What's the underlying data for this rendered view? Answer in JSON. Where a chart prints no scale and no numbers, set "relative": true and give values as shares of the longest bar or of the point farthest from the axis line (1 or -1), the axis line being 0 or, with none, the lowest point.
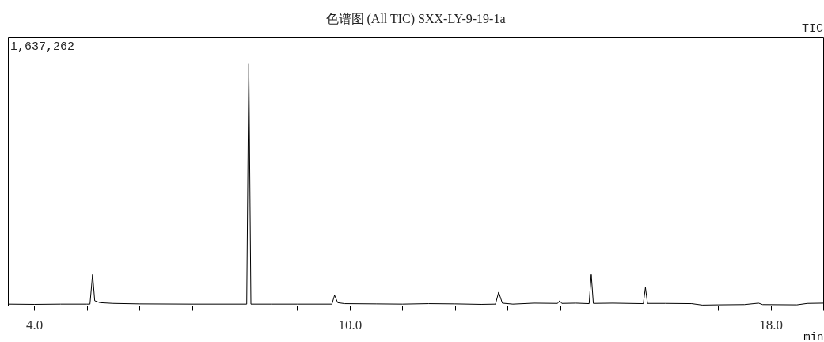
{
  "chart_data": {
    "type": "line",
    "title": "色谱图 (All TIC) SXX-LY-9-19-1a",
    "xlabel": "min",
    "annotations": [
      "1,637,262",
      "TIC"
    ],
    "relative": true,
    "grid": false,
    "marker": "none",
    "line_style": "solid",
    "xlim": [
      3.5,
      19.0
    ],
    "xticks": [
      {
        "value": 4,
        "label": "4.0"
      },
      {
        "value": 5,
        "label": null
      },
      {
        "value": 6,
        "label": null
      },
      {
        "value": 7,
        "label": null
      },
      {
        "value": 8,
        "label": null
      },
      {
        "value": 9,
        "label": null
      },
      {
        "value": 10,
        "label": "10.0"
      },
      {
        "value": 11,
        "label": null
      },
      {
        "value": 12,
        "label": null
      },
      {
        "value": 13,
        "label": null
      },
      {
        "value": 14,
        "label": null
      },
      {
        "value": 15,
        "label": null
      },
      {
        "value": 16,
        "label": null
      },
      {
        "value": 17,
        "label": null
      },
      {
        "value": 18,
        "label": "18.0"
      },
      {
        "value": 19,
        "label": null
      }
    ],
    "series": [
      {
        "color": "#000000",
        "x": [
          3.5,
          4.0,
          4.5,
          5.0,
          5.06,
          5.11,
          5.15,
          5.25,
          5.5,
          6.0,
          7.0,
          8.0,
          8.04,
          8.08,
          8.12,
          8.5,
          9.0,
          9.66,
          9.71,
          9.77,
          9.9,
          10.5,
          11.0,
          11.5,
          12.0,
          12.5,
          12.77,
          12.83,
          12.9,
          13.1,
          13.5,
          13.95,
          13.99,
          14.03,
          14.3,
          14.55,
          14.59,
          14.63,
          15.0,
          15.58,
          15.62,
          15.66,
          16.0,
          16.5,
          16.7,
          17.0,
          17.5,
          17.77,
          17.85,
          18.5,
          18.7,
          19.0
        ],
        "values": [
          0.006,
          0.005,
          0.006,
          0.006,
          0.006,
          0.13,
          0.02,
          0.012,
          0.009,
          0.007,
          0.006,
          0.006,
          0.006,
          1.0,
          0.006,
          0.006,
          0.006,
          0.006,
          0.043,
          0.012,
          0.008,
          0.007,
          0.006,
          0.008,
          0.007,
          0.005,
          0.006,
          0.056,
          0.01,
          0.006,
          0.01,
          0.009,
          0.02,
          0.009,
          0.01,
          0.008,
          0.13,
          0.009,
          0.01,
          0.008,
          0.075,
          0.009,
          0.009,
          0.008,
          0.002,
          0.003,
          0.004,
          0.01,
          0.004,
          0.003,
          0.009,
          0.01
        ]
      }
    ]
  }
}
